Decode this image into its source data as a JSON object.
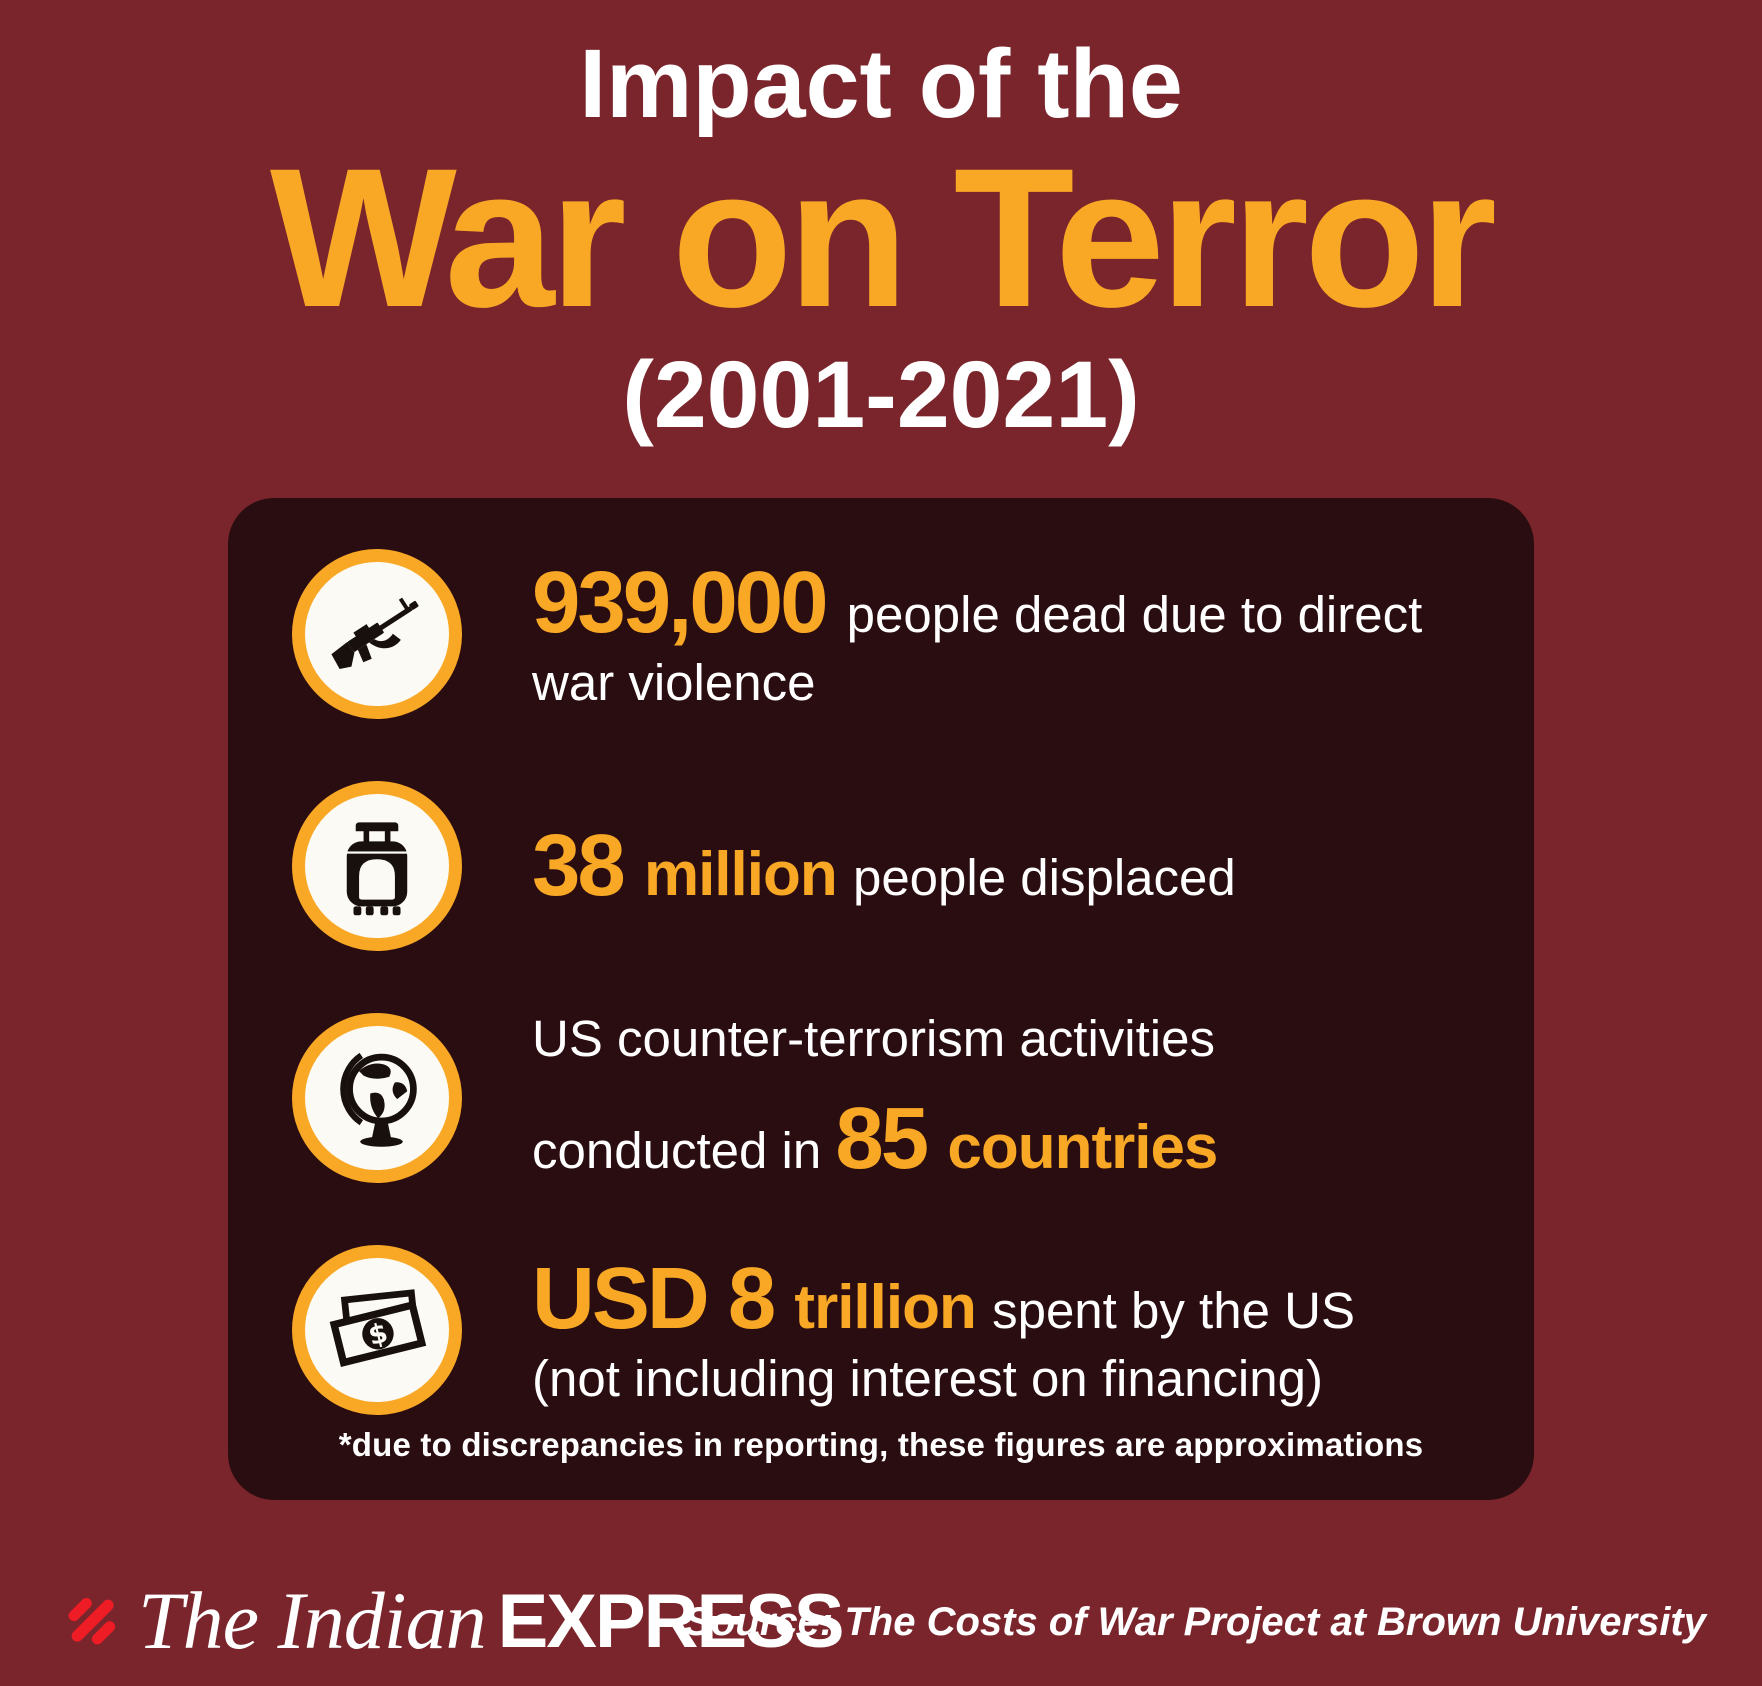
{
  "title": {
    "kicker": "Impact of the",
    "main": "War on Terror",
    "period": "(2001-2021)"
  },
  "colors": {
    "background": "#7A252C",
    "card": "#2A0D10",
    "accent": "#F9A826",
    "text": "#FFFFFF",
    "logo_red": "#EE1C25",
    "icon_black": "#17100D"
  },
  "card": {
    "rows": [
      {
        "icon": "rifle-icon",
        "lines": [
          {
            "segments": [
              {
                "text": "939,000 ",
                "style": "num"
              },
              {
                "text": "people dead due to direct",
                "style": "plain"
              }
            ]
          },
          {
            "segments": [
              {
                "text": "war violence",
                "style": "plain"
              }
            ]
          }
        ]
      },
      {
        "icon": "suitcase-icon",
        "lines": [
          {
            "segments": [
              {
                "text": "38 ",
                "style": "num"
              },
              {
                "text": "million ",
                "style": "cond"
              },
              {
                "text": "people displaced",
                "style": "plain"
              }
            ]
          }
        ]
      },
      {
        "icon": "globe-icon",
        "lines": [
          {
            "segments": [
              {
                "text": "US counter-terrorism activities",
                "style": "plain"
              }
            ]
          },
          {
            "segments": [
              {
                "text": "conducted in ",
                "style": "plain"
              },
              {
                "text": "85 ",
                "style": "num"
              },
              {
                "text": "countries",
                "style": "cond"
              }
            ]
          }
        ]
      },
      {
        "icon": "money-icon",
        "lines": [
          {
            "segments": [
              {
                "text": "USD 8 ",
                "style": "num"
              },
              {
                "text": "trillion ",
                "style": "cond"
              },
              {
                "text": "spent by the US",
                "style": "plain"
              }
            ]
          },
          {
            "segments": [
              {
                "text": "(not including interest on financing)",
                "style": "plain"
              }
            ]
          }
        ]
      }
    ],
    "footnote": "*due to discrepancies in reporting, these figures are approximations"
  },
  "footer": {
    "logo_serif": "The Indian",
    "logo_sans": "EXPRESS",
    "source": "Source: The Costs of War Project at Brown University"
  }
}
